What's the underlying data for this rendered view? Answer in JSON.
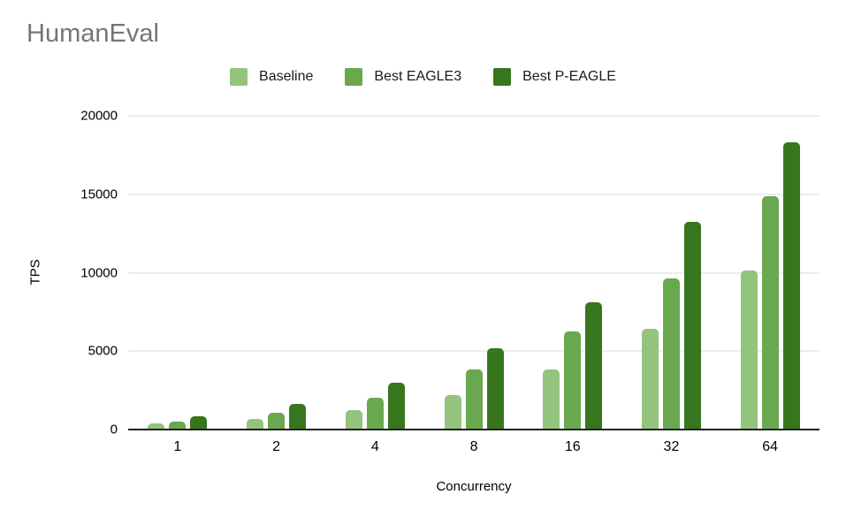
{
  "title": "HumanEval",
  "colors": {
    "background": "#ffffff",
    "title_text": "#757575",
    "gridline": "#d9d9d9",
    "axis_line": "#212121",
    "label_text": "#000000"
  },
  "chart_data": {
    "type": "bar",
    "title": "HumanEval",
    "xlabel": "Concurrency",
    "ylabel": "TPS",
    "categories": [
      "1",
      "2",
      "4",
      "8",
      "16",
      "32",
      "64"
    ],
    "series": [
      {
        "name": "Baseline",
        "color": "#93c47d",
        "values": [
          400,
          700,
          1250,
          2200,
          3850,
          6450,
          10150
        ]
      },
      {
        "name": "Best EAGLE3",
        "color": "#6aa84f",
        "values": [
          500,
          1050,
          2050,
          3850,
          6250,
          9650,
          14900
        ]
      },
      {
        "name": "Best P-EAGLE",
        "color": "#38761d",
        "values": [
          850,
          1650,
          3000,
          5200,
          8100,
          13250,
          18300
        ]
      }
    ],
    "ylim": [
      0,
      20000
    ],
    "yticks": [
      0,
      5000,
      10000,
      15000,
      20000
    ],
    "grid": true,
    "legend_position": "top"
  }
}
